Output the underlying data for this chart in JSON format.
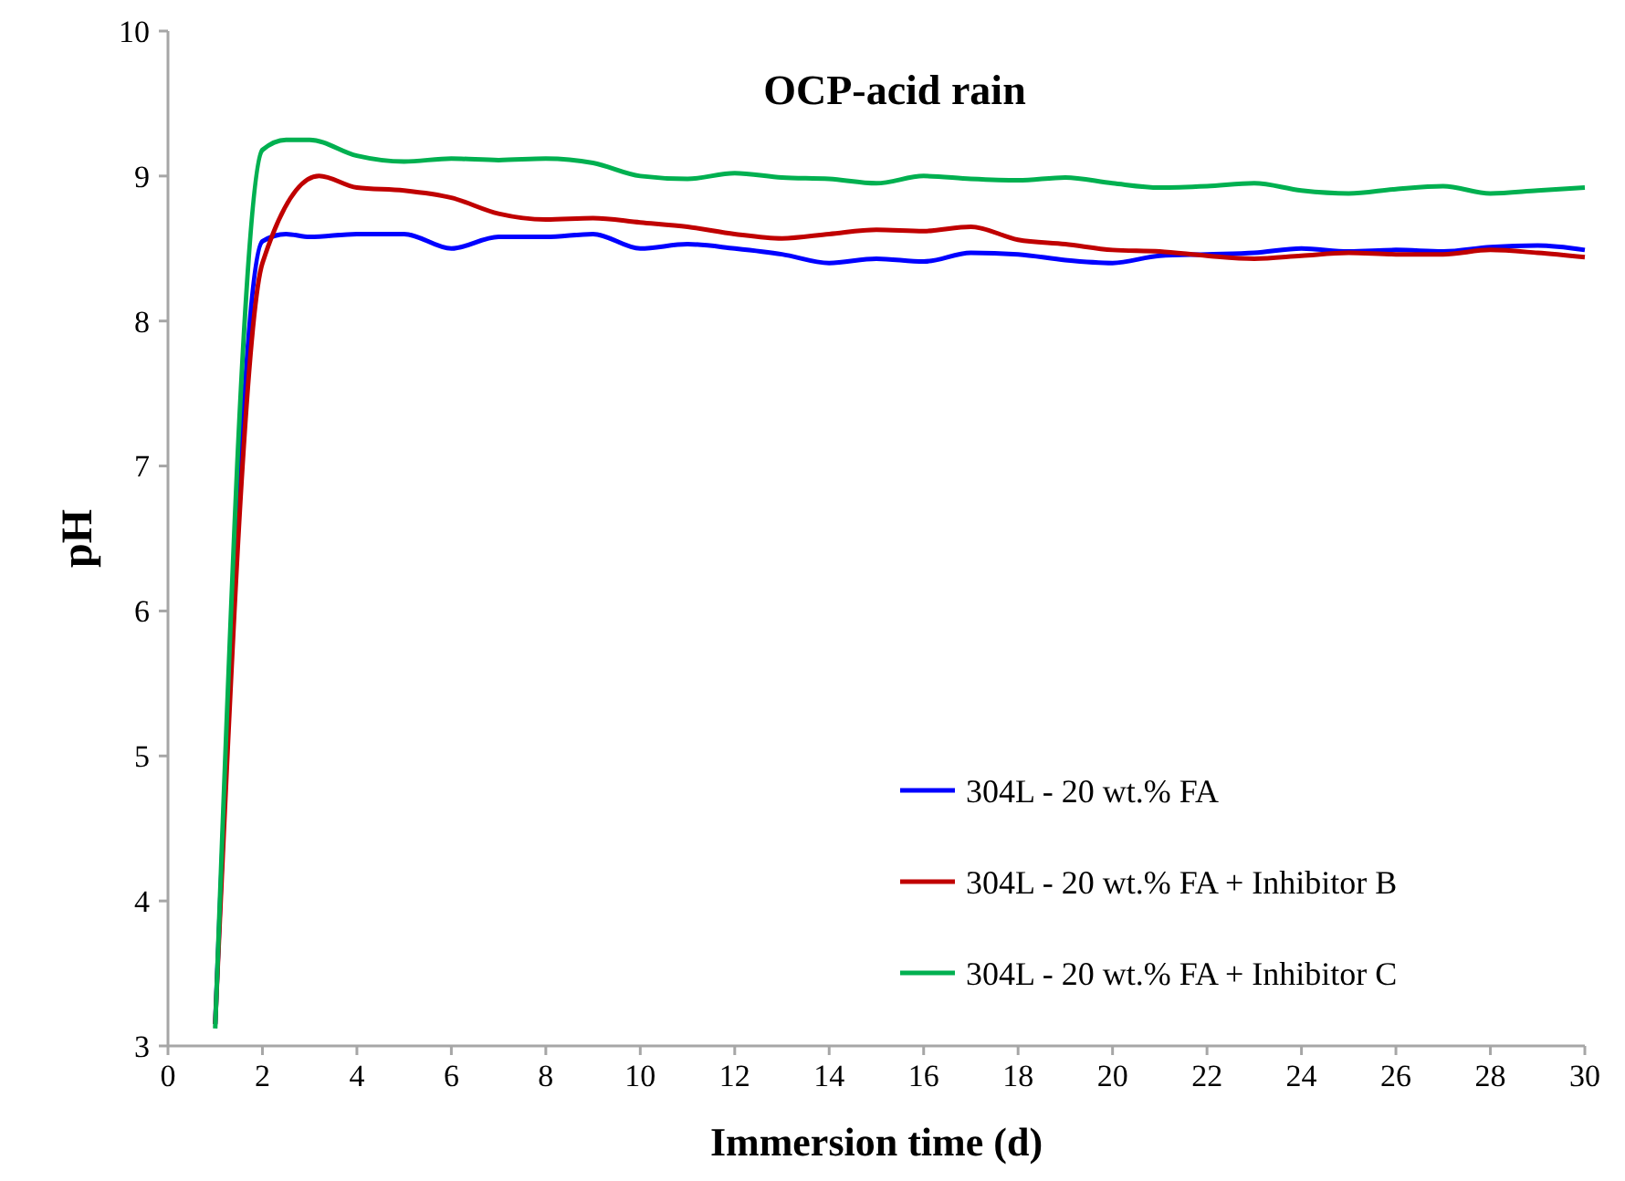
{
  "chart_data": {
    "type": "line",
    "title": "OCP-acid rain",
    "xlabel": "Immersion time (d)",
    "ylabel": "pH",
    "xlim": [
      0,
      30
    ],
    "xticks": [
      0,
      2,
      4,
      6,
      8,
      10,
      12,
      14,
      16,
      18,
      20,
      22,
      24,
      26,
      28,
      30
    ],
    "ylim": [
      3,
      10
    ],
    "yticks": [
      3,
      4,
      5,
      6,
      7,
      8,
      9,
      10
    ],
    "grid": false,
    "legend": "bottom right",
    "marker": "none",
    "line_style": "solid",
    "series": [
      {
        "name": "304L - 20 wt.% FA",
        "color": "#0000ff",
        "x": [
          1,
          2,
          2.5,
          3,
          4,
          5,
          6,
          7,
          8,
          9,
          10,
          11,
          12,
          13,
          14,
          15,
          16,
          17,
          18,
          19,
          20,
          21,
          22,
          23,
          24,
          25,
          26,
          27,
          28,
          29,
          30
        ],
        "values": [
          3.15,
          8.55,
          8.6,
          8.58,
          8.6,
          8.6,
          8.5,
          8.58,
          8.58,
          8.6,
          8.5,
          8.53,
          8.5,
          8.46,
          8.4,
          8.43,
          8.41,
          8.47,
          8.46,
          8.42,
          8.4,
          8.45,
          8.46,
          8.47,
          8.5,
          8.48,
          8.49,
          8.48,
          8.51,
          8.52,
          8.49
        ]
      },
      {
        "name": "304L - 20 wt.% FA + Inhibitor B",
        "color": "#c00000",
        "x": [
          1,
          2,
          3.2,
          4,
          5,
          6,
          7,
          8,
          9,
          10,
          11,
          12,
          13,
          14,
          15,
          16,
          17,
          18,
          19,
          20,
          21,
          22,
          23,
          24,
          25,
          26,
          27,
          28,
          29,
          30
        ],
        "values": [
          3.15,
          8.4,
          9.0,
          8.92,
          8.9,
          8.85,
          8.74,
          8.7,
          8.71,
          8.68,
          8.65,
          8.6,
          8.57,
          8.6,
          8.63,
          8.62,
          8.65,
          8.56,
          8.53,
          8.49,
          8.48,
          8.45,
          8.43,
          8.45,
          8.47,
          8.46,
          8.46,
          8.49,
          8.47,
          8.44
        ]
      },
      {
        "name": "304L - 20 wt.% FA + Inhibitor C",
        "color": "#00b050",
        "x": [
          1,
          2,
          2.5,
          3,
          4,
          5,
          6,
          7,
          8,
          9,
          10,
          11,
          12,
          13,
          14,
          15,
          16,
          17,
          18,
          19,
          20,
          21,
          22,
          23,
          24,
          25,
          26,
          27,
          28,
          29,
          30
        ],
        "values": [
          3.12,
          9.18,
          9.25,
          9.25,
          9.14,
          9.1,
          9.12,
          9.11,
          9.12,
          9.09,
          9.0,
          8.98,
          9.02,
          8.99,
          8.98,
          8.95,
          9.0,
          8.98,
          8.97,
          8.99,
          8.95,
          8.92,
          8.93,
          8.95,
          8.9,
          8.88,
          8.91,
          8.93,
          8.88,
          8.9,
          8.92
        ]
      }
    ]
  }
}
